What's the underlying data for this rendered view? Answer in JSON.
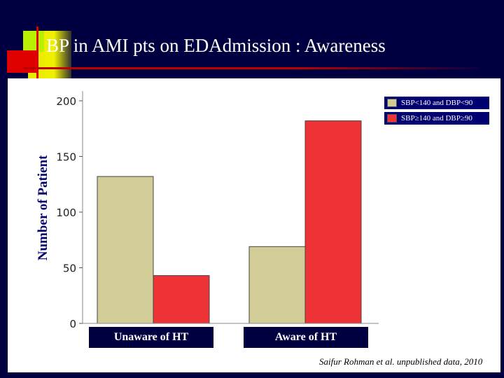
{
  "title": "BP in AMI pts on EDAdmission : Awareness",
  "source_note": "Saifur Rohman et al. unpublished data, 2010",
  "colors": {
    "background": "#000040",
    "series_1": "#d2cd96",
    "series_2": "#ee3337"
  },
  "chart_data": {
    "type": "bar",
    "title": "",
    "xlabel": "",
    "ylabel": "Number of Patient",
    "categories": [
      "Unaware of HT",
      "Aware of HT"
    ],
    "series": [
      {
        "name": "SBP<140 and DBP<90",
        "values": [
          132,
          69
        ]
      },
      {
        "name": "SBP≥140 and DBP≥90",
        "values": [
          43,
          182
        ]
      }
    ],
    "ylim": [
      0,
      200
    ],
    "yticks": [
      "0",
      "50",
      "100",
      "150",
      "200"
    ],
    "grid": false,
    "legend_position": "top-right"
  }
}
